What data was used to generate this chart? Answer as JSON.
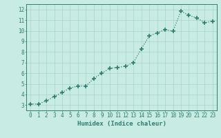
{
  "x": [
    0,
    1,
    2,
    3,
    4,
    5,
    6,
    7,
    8,
    9,
    10,
    11,
    12,
    13,
    14,
    15,
    16,
    17,
    18,
    19,
    20,
    21,
    22,
    23
  ],
  "y": [
    3.1,
    3.1,
    3.4,
    3.8,
    4.2,
    4.6,
    4.8,
    4.8,
    5.5,
    6.0,
    6.45,
    6.55,
    6.65,
    7.0,
    8.3,
    9.5,
    9.8,
    10.1,
    9.95,
    11.85,
    11.45,
    11.2,
    10.75,
    10.9
  ],
  "line_color": "#2e7d6e",
  "marker": "+",
  "marker_size": 4,
  "bg_color": "#c8ebe3",
  "grid_color": "#a8d5c8",
  "xlabel": "Humidex (Indice chaleur)",
  "xlim": [
    -0.5,
    23.5
  ],
  "ylim": [
    2.5,
    12.5
  ],
  "yticks": [
    3,
    4,
    5,
    6,
    7,
    8,
    9,
    10,
    11,
    12
  ],
  "xticks": [
    0,
    1,
    2,
    3,
    4,
    5,
    6,
    7,
    8,
    9,
    10,
    11,
    12,
    13,
    14,
    15,
    16,
    17,
    18,
    19,
    20,
    21,
    22,
    23
  ],
  "font_color": "#2e7d6e",
  "xlabel_fontsize": 6.5,
  "tick_fontsize": 5.5
}
